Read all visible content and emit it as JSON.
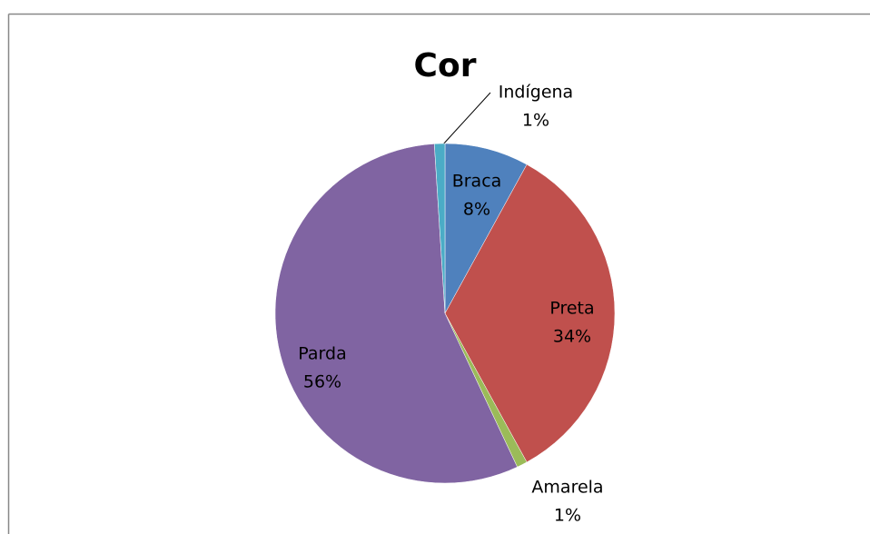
{
  "chart_data": {
    "type": "pie",
    "title": "Cor",
    "categories": [
      "Braca",
      "Preta",
      "Amarela",
      "Parda",
      "Indígena"
    ],
    "values": [
      8,
      34,
      1,
      56,
      1
    ],
    "value_labels": [
      "8%",
      "34%",
      "1%",
      "56%",
      "1%"
    ],
    "colors": [
      "#4f81bd",
      "#c0504d",
      "#9bbb59",
      "#8064a2",
      "#4bacc6"
    ]
  }
}
